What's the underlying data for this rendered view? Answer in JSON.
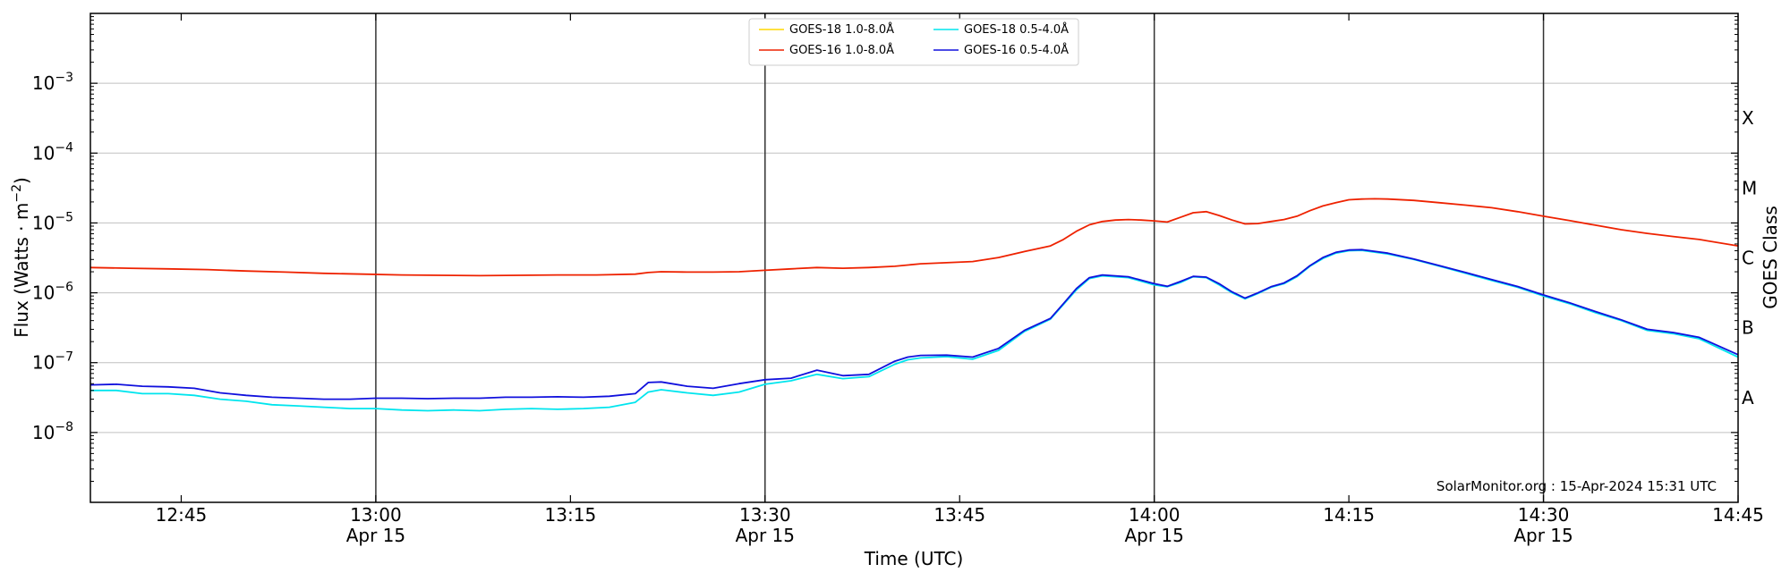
{
  "chart_data": {
    "type": "line",
    "xlabel": "Time (UTC)",
    "ylabel": "Flux (Watts · m^-2)",
    "ylabel_parts": {
      "base": "Flux (Watts · m",
      "exp": "−2",
      "close": ")"
    },
    "right_label": "GOES Class",
    "credit": "SolarMonitor.org : 15-Apr-2024 15:31 UTC",
    "y_scale": "log",
    "ylim": [
      1e-09,
      0.01
    ],
    "xlim": [
      "12:38",
      "14:45"
    ],
    "grid": "horizontal",
    "legend_position": "top-center",
    "x_ticks": [
      {
        "time": "12:45",
        "label": "12:45",
        "sublabel": ""
      },
      {
        "time": "13:00",
        "label": "13:00",
        "sublabel": "Apr 15"
      },
      {
        "time": "13:15",
        "label": "13:15",
        "sublabel": ""
      },
      {
        "time": "13:30",
        "label": "13:30",
        "sublabel": "Apr 15"
      },
      {
        "time": "13:45",
        "label": "13:45",
        "sublabel": ""
      },
      {
        "time": "14:00",
        "label": "14:00",
        "sublabel": "Apr 15"
      },
      {
        "time": "14:15",
        "label": "14:15",
        "sublabel": ""
      },
      {
        "time": "14:30",
        "label": "14:30",
        "sublabel": "Apr 15"
      },
      {
        "time": "14:45",
        "label": "14:45",
        "sublabel": ""
      }
    ],
    "vlines": [
      "13:00",
      "13:30",
      "14:00",
      "14:30"
    ],
    "y_ticks": [
      {
        "value": 1e-08,
        "exp": "−8"
      },
      {
        "value": 1e-07,
        "exp": "−7"
      },
      {
        "value": 1e-06,
        "exp": "−6"
      },
      {
        "value": 1e-05,
        "exp": "−5"
      },
      {
        "value": 0.0001,
        "exp": "−4"
      },
      {
        "value": 0.001,
        "exp": "−3"
      }
    ],
    "tick_base": "10",
    "goes_classes": [
      {
        "label": "A",
        "value": 3.16e-08
      },
      {
        "label": "B",
        "value": 3.16e-07
      },
      {
        "label": "C",
        "value": 3.16e-06
      },
      {
        "label": "M",
        "value": 3.16e-05
      },
      {
        "label": "X",
        "value": 0.000316
      }
    ],
    "series": [
      {
        "name": "GOES-18 1.0-8.0Å",
        "color": "#ffd700",
        "x": [],
        "y": []
      },
      {
        "name": "GOES-16 1.0-8.0Å",
        "color": "#ee2200",
        "x": [
          "12:38",
          "12:41",
          "12:44",
          "12:47",
          "12:50",
          "12:53",
          "12:56",
          "12:59",
          "13:02",
          "13:05",
          "13:08",
          "13:11",
          "13:14",
          "13:17",
          "13:20",
          "13:21",
          "13:22",
          "13:24",
          "13:26",
          "13:28",
          "13:30",
          "13:32",
          "13:34",
          "13:36",
          "13:38",
          "13:40",
          "13:42",
          "13:44",
          "13:46",
          "13:48",
          "13:50",
          "13:52",
          "13:53",
          "13:54",
          "13:55",
          "13:56",
          "13:57",
          "13:58",
          "13:59",
          "14:00",
          "14:01",
          "14:02",
          "14:03",
          "14:04",
          "14:05",
          "14:06",
          "14:07",
          "14:08",
          "14:09",
          "14:10",
          "14:11",
          "14:12",
          "14:13",
          "14:14",
          "14:15",
          "14:16",
          "14:17",
          "14:18",
          "14:20",
          "14:22",
          "14:24",
          "14:26",
          "14:28",
          "14:30",
          "14:32",
          "14:34",
          "14:36",
          "14:38",
          "14:40",
          "14:42",
          "14:45"
        ],
        "y": [
          2.3e-06,
          2.25e-06,
          2.2e-06,
          2.15e-06,
          2.05e-06,
          1.98e-06,
          1.9e-06,
          1.85e-06,
          1.8e-06,
          1.78e-06,
          1.76e-06,
          1.78e-06,
          1.8e-06,
          1.8e-06,
          1.85e-06,
          1.95e-06,
          2e-06,
          1.98e-06,
          1.98e-06,
          2e-06,
          2.1e-06,
          2.2e-06,
          2.3e-06,
          2.25e-06,
          2.3e-06,
          2.4e-06,
          2.6e-06,
          2.7e-06,
          2.8e-06,
          3.2e-06,
          3.9e-06,
          4.7e-06,
          5.8e-06,
          7.6e-06,
          9.4e-06,
          1.05e-05,
          1.1e-05,
          1.12e-05,
          1.1e-05,
          1.07e-05,
          1.03e-05,
          1.2e-05,
          1.4e-05,
          1.45e-05,
          1.28e-05,
          1.1e-05,
          9.7e-06,
          9.8e-06,
          1.05e-05,
          1.12e-05,
          1.25e-05,
          1.5e-05,
          1.75e-05,
          1.95e-05,
          2.15e-05,
          2.2e-05,
          2.22e-05,
          2.2e-05,
          2.1e-05,
          1.95e-05,
          1.8e-05,
          1.65e-05,
          1.45e-05,
          1.25e-05,
          1.08e-05,
          9.3e-06,
          8e-06,
          7.1e-06,
          6.4e-06,
          5.8e-06,
          4.7e-06
        ]
      },
      {
        "name": "GOES-18 0.5-4.0Å",
        "color": "#00e5ee",
        "x": [
          "12:38",
          "12:40",
          "12:42",
          "12:44",
          "12:46",
          "12:48",
          "12:50",
          "12:52",
          "12:54",
          "12:56",
          "12:58",
          "13:00",
          "13:02",
          "13:04",
          "13:06",
          "13:08",
          "13:10",
          "13:12",
          "13:14",
          "13:16",
          "13:18",
          "13:20",
          "13:21",
          "13:22",
          "13:24",
          "13:26",
          "13:28",
          "13:30",
          "13:32",
          "13:34",
          "13:36",
          "13:38",
          "13:40",
          "13:41",
          "13:42",
          "13:44",
          "13:46",
          "13:48",
          "13:50",
          "13:52",
          "13:53",
          "13:54",
          "13:55",
          "13:56",
          "13:58",
          "14:00",
          "14:01",
          "14:02",
          "14:03",
          "14:04",
          "14:05",
          "14:06",
          "14:07",
          "14:08",
          "14:09",
          "14:10",
          "14:11",
          "14:12",
          "14:13",
          "14:14",
          "14:15",
          "14:16",
          "14:18",
          "14:20",
          "14:22",
          "14:24",
          "14:26",
          "14:28",
          "14:30",
          "14:32",
          "14:34",
          "14:36",
          "14:38",
          "14:40",
          "14:42",
          "14:45"
        ],
        "y": [
          4e-08,
          4e-08,
          3.6e-08,
          3.6e-08,
          3.4e-08,
          3e-08,
          2.8e-08,
          2.5e-08,
          2.4e-08,
          2.3e-08,
          2.2e-08,
          2.2e-08,
          2.1e-08,
          2.05e-08,
          2.1e-08,
          2.05e-08,
          2.15e-08,
          2.2e-08,
          2.15e-08,
          2.2e-08,
          2.3e-08,
          2.7e-08,
          3.8e-08,
          4.1e-08,
          3.7e-08,
          3.4e-08,
          3.8e-08,
          4.9e-08,
          5.5e-08,
          6.8e-08,
          5.9e-08,
          6.3e-08,
          9.5e-08,
          1.1e-07,
          1.17e-07,
          1.22e-07,
          1.12e-07,
          1.5e-07,
          2.8e-07,
          4.2e-07,
          6.8e-07,
          1.1e-06,
          1.6e-06,
          1.75e-06,
          1.65e-06,
          1.3e-06,
          1.22e-06,
          1.4e-06,
          1.7e-06,
          1.65e-06,
          1.3e-06,
          1e-06,
          8.2e-07,
          9.8e-07,
          1.2e-06,
          1.35e-06,
          1.7e-06,
          2.4e-06,
          3.1e-06,
          3.7e-06,
          4e-06,
          4.05e-06,
          3.6e-06,
          3e-06,
          2.4e-06,
          1.9e-06,
          1.5e-06,
          1.2e-06,
          9e-07,
          7e-07,
          5.2e-07,
          4e-07,
          2.9e-07,
          2.6e-07,
          2.2e-07,
          1.2e-07
        ]
      },
      {
        "name": "GOES-16 0.5-4.0Å",
        "color": "#1010dd",
        "x": [
          "12:38",
          "12:40",
          "12:42",
          "12:44",
          "12:46",
          "12:48",
          "12:50",
          "12:52",
          "12:54",
          "12:56",
          "12:58",
          "13:00",
          "13:02",
          "13:04",
          "13:06",
          "13:08",
          "13:10",
          "13:12",
          "13:14",
          "13:16",
          "13:18",
          "13:20",
          "13:21",
          "13:22",
          "13:24",
          "13:26",
          "13:28",
          "13:30",
          "13:32",
          "13:34",
          "13:36",
          "13:38",
          "13:40",
          "13:41",
          "13:42",
          "13:44",
          "13:46",
          "13:48",
          "13:50",
          "13:52",
          "13:53",
          "13:54",
          "13:55",
          "13:56",
          "13:58",
          "14:00",
          "14:01",
          "14:02",
          "14:03",
          "14:04",
          "14:05",
          "14:06",
          "14:07",
          "14:08",
          "14:09",
          "14:10",
          "14:11",
          "14:12",
          "14:13",
          "14:14",
          "14:15",
          "14:16",
          "14:18",
          "14:20",
          "14:22",
          "14:24",
          "14:26",
          "14:28",
          "14:30",
          "14:32",
          "14:34",
          "14:36",
          "14:38",
          "14:40",
          "14:42",
          "14:45"
        ],
        "y": [
          4.8e-08,
          4.9e-08,
          4.6e-08,
          4.5e-08,
          4.3e-08,
          3.7e-08,
          3.4e-08,
          3.2e-08,
          3.1e-08,
          3e-08,
          3e-08,
          3.1e-08,
          3.1e-08,
          3.05e-08,
          3.1e-08,
          3.1e-08,
          3.2e-08,
          3.2e-08,
          3.25e-08,
          3.2e-08,
          3.3e-08,
          3.6e-08,
          5.2e-08,
          5.3e-08,
          4.6e-08,
          4.3e-08,
          5e-08,
          5.7e-08,
          6e-08,
          7.8e-08,
          6.5e-08,
          6.8e-08,
          1.05e-07,
          1.2e-07,
          1.27e-07,
          1.28e-07,
          1.2e-07,
          1.6e-07,
          2.9e-07,
          4.3e-07,
          7e-07,
          1.15e-06,
          1.65e-06,
          1.8e-06,
          1.7e-06,
          1.35e-06,
          1.24e-06,
          1.45e-06,
          1.72e-06,
          1.68e-06,
          1.35e-06,
          1.03e-06,
          8.4e-07,
          1e-06,
          1.22e-06,
          1.38e-06,
          1.75e-06,
          2.45e-06,
          3.2e-06,
          3.8e-06,
          4.1e-06,
          4.15e-06,
          3.7e-06,
          3.05e-06,
          2.45e-06,
          1.95e-06,
          1.55e-06,
          1.23e-06,
          9.3e-07,
          7.2e-07,
          5.4e-07,
          4.1e-07,
          3e-07,
          2.7e-07,
          2.3e-07,
          1.3e-07
        ]
      }
    ]
  }
}
